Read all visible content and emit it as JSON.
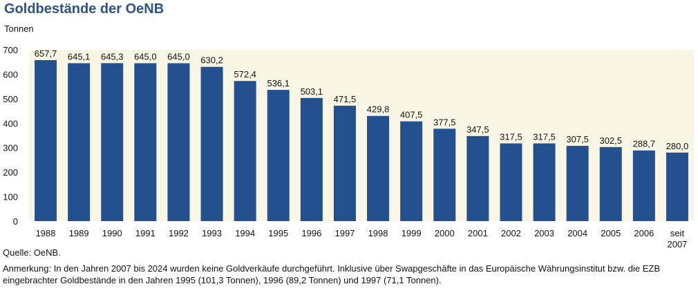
{
  "title": "Goldbestände der OeNB",
  "unit_label": "Tonnen",
  "source": "Quelle: OeNB.",
  "note": "Anmerkung: In den Jahren 2007 bis 2024 wurden keine Goldverkäufe durchgeführt. Inklusive über Swapgeschäfte in das Europäische Währungsinstitut bzw. die EZB eingebrachter Goldbestände in den Jahren 1995 (101,3 Tonnen), 1996 (89,2 Tonnen)  und 1997 (71,1 Tonnen).",
  "colors": {
    "bar": "#23508e",
    "plot_bg": "#faf6e6",
    "title": "#2c5288"
  },
  "chart_data": {
    "type": "bar",
    "title": "Goldbestände der OeNB",
    "ylabel": "Tonnen",
    "xlabel": "",
    "ylim": [
      0,
      700
    ],
    "yticks": [
      0,
      100,
      200,
      300,
      400,
      500,
      600,
      700
    ],
    "grid": false,
    "categories": [
      "1988",
      "1989",
      "1990",
      "1991",
      "1992",
      "1993",
      "1994",
      "1995",
      "1996",
      "1997",
      "1998",
      "1999",
      "2000",
      "2001",
      "2002",
      "2003",
      "2004",
      "2005",
      "2006",
      "seit 2007"
    ],
    "values": [
      657.7,
      645.1,
      645.3,
      645.0,
      645.0,
      630.2,
      572.4,
      536.1,
      503.1,
      471.5,
      429.8,
      407.5,
      377.5,
      347.5,
      317.5,
      317.5,
      307.5,
      302.5,
      288.7,
      280.0
    ],
    "value_labels": [
      "657,7",
      "645,1",
      "645,3",
      "645,0",
      "645,0",
      "630,2",
      "572,4",
      "536,1",
      "503,1",
      "471,5",
      "429,8",
      "407,5",
      "377,5",
      "347,5",
      "317,5",
      "317,5",
      "307,5",
      "302,5",
      "288,7",
      "280,0"
    ]
  }
}
